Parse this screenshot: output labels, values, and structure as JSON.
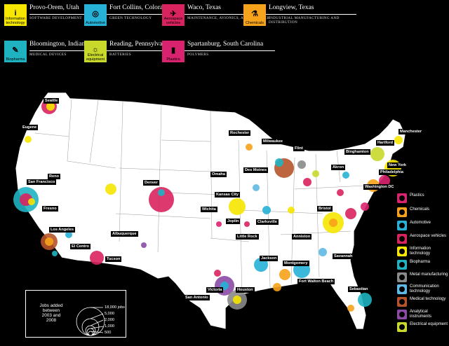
{
  "headers": [
    {
      "city": "Provo-Orem, Utah",
      "industry": "SOFTWARE DEVELOPMENT",
      "label": "Information technology",
      "color": "#f6e600",
      "glyph": "i"
    },
    {
      "city": "Fort Collins, Colorado",
      "industry": "GREEN TECHNOLOGY",
      "label": "Automotive",
      "color": "#27b1d6",
      "glyph": "◎"
    },
    {
      "city": "Waco, Texas",
      "industry": "MAINTENANCE, AVIONICS, AND DISPATCH",
      "label": "Aerospace vehicles",
      "color": "#d9235e",
      "glyph": "✈"
    },
    {
      "city": "Longview, Texas",
      "industry": "INDUSTRIAL MANUFACTURING AND DISTRIBUTION",
      "label": "Chemicals",
      "color": "#f7a21b",
      "glyph": "⚗"
    },
    {
      "city": "Bloomington, Indiana",
      "industry": "MEDICAL DEVICES",
      "label": "Biopharma",
      "color": "#1fb3c2",
      "glyph": "✎"
    },
    {
      "city": "Reading, Pennsylvania",
      "industry": "BATTERIES",
      "label": "Electrical equipment",
      "color": "#c8d92b",
      "glyph": "☼"
    },
    {
      "city": "Spartanburg, South Carolina",
      "industry": "POLYMERS",
      "label": "Plastics",
      "color": "#d9236e",
      "glyph": "▮"
    }
  ],
  "cities": [
    "Seattle",
    "Eugene",
    "Reno",
    "San Francisco",
    "Fresno",
    "Los Angeles",
    "El Centro",
    "Tucson",
    "Albuquerque",
    "Denver",
    "Omaha",
    "Wichita",
    "Kansas City",
    "Joplin",
    "Little Rock",
    "Clarksville",
    "Rochester",
    "Milwaukee",
    "Des Moines",
    "Flint",
    "Akron",
    "Binghamton",
    "Hartford",
    "Manchester",
    "New York",
    "Philadelphia",
    "Washington DC",
    "Bristol",
    "Anniston",
    "Savannah",
    "Jackson",
    "Montgomery",
    "Fort Walton Beach",
    "Sebastian",
    "Victoria",
    "Houston",
    "San Antonio"
  ],
  "legend": [
    {
      "label": "Plastics",
      "color": "#d9236e"
    },
    {
      "label": "Chemicals",
      "color": "#f7a21b"
    },
    {
      "label": "Automotive",
      "color": "#27b1d6"
    },
    {
      "label": "Aerospace vehicles",
      "color": "#d9235e"
    },
    {
      "label": "Information technology",
      "color": "#f6e600"
    },
    {
      "label": "Biopharma",
      "color": "#1fb3c2"
    },
    {
      "label": "Metal manufacturing",
      "color": "#8a8a8a"
    },
    {
      "label": "Communication technology",
      "color": "#5fb9e6"
    },
    {
      "label": "Medical technology",
      "color": "#b5542a"
    },
    {
      "label": "Analytical instruments",
      "color": "#8b4aa5"
    },
    {
      "label": "Electrical equipment",
      "color": "#c8d92b"
    }
  ],
  "size_legend": {
    "title": "Jobs added between 2003 and 2008",
    "values": [
      "18,000 jobs",
      "5,000",
      "2,000",
      "1,000",
      "500"
    ]
  }
}
